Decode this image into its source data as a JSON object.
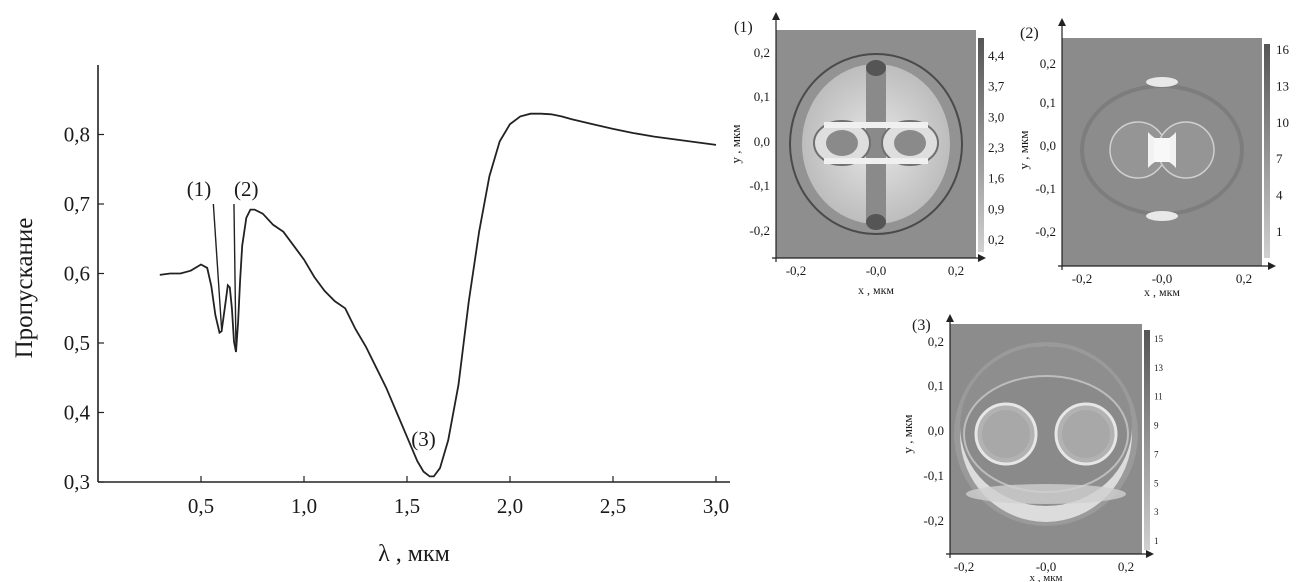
{
  "chart_data": [
    {
      "type": "line",
      "title": "",
      "xlabel": "λ , мкм",
      "ylabel": "Пропускание",
      "xlim": [
        0,
        3.0
      ],
      "ylim": [
        0.3,
        0.9
      ],
      "xticks": [
        "0,5",
        "1,0",
        "1,5",
        "2,0",
        "2,5",
        "3,0"
      ],
      "yticks": [
        "0,3",
        "0,4",
        "0,5",
        "0,6",
        "0,7",
        "0,8"
      ],
      "grid": false,
      "series": [
        {
          "x": [
            0.3,
            0.35,
            0.4,
            0.45,
            0.5,
            0.53,
            0.55,
            0.57,
            0.59,
            0.6,
            0.62,
            0.63,
            0.64,
            0.65,
            0.66,
            0.67,
            0.68,
            0.69,
            0.7,
            0.72,
            0.74,
            0.76,
            0.8,
            0.85,
            0.9,
            0.95,
            1.0,
            1.05,
            1.1,
            1.15,
            1.2,
            1.25,
            1.3,
            1.35,
            1.4,
            1.45,
            1.5,
            1.55,
            1.58,
            1.61,
            1.63,
            1.66,
            1.7,
            1.75,
            1.8,
            1.85,
            1.9,
            1.95,
            2.0,
            2.05,
            2.1,
            2.15,
            2.2,
            2.25,
            2.3,
            2.4,
            2.5,
            2.6,
            2.7,
            2.8,
            2.9,
            3.0
          ],
          "y": [
            0.598,
            0.6,
            0.6,
            0.604,
            0.613,
            0.608,
            0.582,
            0.54,
            0.515,
            0.517,
            0.56,
            0.583,
            0.58,
            0.55,
            0.502,
            0.487,
            0.53,
            0.59,
            0.64,
            0.68,
            0.692,
            0.692,
            0.686,
            0.67,
            0.66,
            0.64,
            0.62,
            0.595,
            0.575,
            0.56,
            0.55,
            0.52,
            0.495,
            0.465,
            0.435,
            0.4,
            0.365,
            0.33,
            0.315,
            0.308,
            0.308,
            0.32,
            0.36,
            0.44,
            0.56,
            0.66,
            0.74,
            0.79,
            0.815,
            0.826,
            0.83,
            0.83,
            0.829,
            0.826,
            0.822,
            0.815,
            0.808,
            0.802,
            0.797,
            0.793,
            0.789,
            0.785
          ]
        }
      ],
      "annotations": [
        {
          "text": "(1)",
          "x": 0.55,
          "y": 0.7
        },
        {
          "text": "(2)",
          "x": 0.66,
          "y": 0.7
        },
        {
          "text": "(3)",
          "x": 1.58,
          "y": 0.34
        }
      ]
    },
    {
      "type": "heatmap",
      "panel_label": "(1)",
      "xlabel": "x , мкм",
      "ylabel": "y , мкм",
      "xticks": [
        "-0,2",
        "-0,0",
        "0,2"
      ],
      "yticks": [
        "0,2",
        "0,1",
        "0,0",
        "-0,1",
        "-0,2"
      ],
      "colorbar": [
        "4,4",
        "3,7",
        "3,0",
        "2,3",
        "1,6",
        "0,9",
        "0,2"
      ],
      "grid": false
    },
    {
      "type": "heatmap",
      "panel_label": "(2)",
      "xlabel": "x , мкм",
      "ylabel": "y , мкм",
      "xticks": [
        "-0,2",
        "-0,0",
        "0,2"
      ],
      "yticks": [
        "0,2",
        "0,1",
        "0,0",
        "-0,1",
        "-0,2"
      ],
      "colorbar": [
        "16",
        "13",
        "10",
        "7",
        "4",
        "1"
      ],
      "grid": false
    },
    {
      "type": "heatmap",
      "panel_label": "(3)",
      "xlabel": "x , мкм",
      "ylabel": "y , мкм",
      "xticks": [
        "-0,2",
        "-0,0",
        "0,2"
      ],
      "yticks": [
        "0,2",
        "0,1",
        "0,0",
        "-0,1",
        "-0,2"
      ],
      "colorbar": [
        "15",
        "13",
        "11",
        "9",
        "7",
        "5",
        "3",
        "1"
      ],
      "grid": false
    }
  ]
}
